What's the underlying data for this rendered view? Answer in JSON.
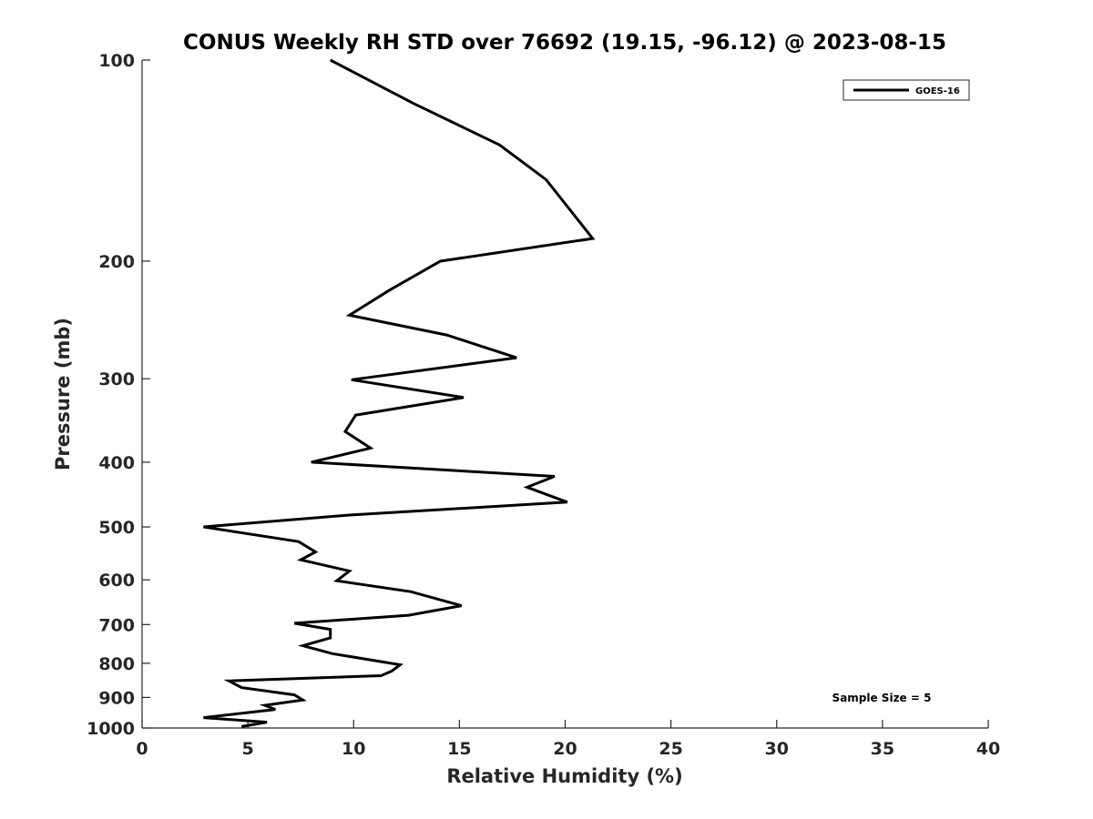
{
  "chart_data": {
    "type": "line",
    "title": "CONUS Weekly RH STD over 76692 (19.15, -96.12) @ 2023-08-15",
    "xlabel": "Relative Humidity (%)",
    "ylabel": "Pressure (mb)",
    "xlim": [
      0,
      40
    ],
    "ylim": [
      100,
      1000
    ],
    "y_scale": "log",
    "y_reversed": true,
    "x_ticks": [
      0,
      5,
      10,
      15,
      20,
      25,
      30,
      35,
      40
    ],
    "x_tick_labels": [
      "0",
      "5",
      "10",
      "15",
      "20",
      "25",
      "30",
      "35",
      "40"
    ],
    "y_ticks": [
      100,
      200,
      300,
      400,
      500,
      600,
      700,
      800,
      900,
      1000
    ],
    "y_tick_labels": [
      "100",
      "200",
      "300",
      "400",
      "500",
      "600",
      "700",
      "800",
      "900",
      "1000"
    ],
    "grid": false,
    "legend": {
      "position": "top-right",
      "entries": [
        "GOES-16"
      ]
    },
    "annotation": "Sample Size = 5",
    "series": [
      {
        "name": "GOES-16",
        "color": "#000000",
        "x": [
          8.9,
          12.8,
          16.9,
          19.1,
          21.3,
          14.1,
          11.7,
          9.8,
          14.4,
          17.7,
          9.9,
          15.2,
          10.1,
          9.6,
          10.8,
          8.0,
          19.5,
          18.2,
          20.1,
          9.8,
          2.9,
          7.4,
          8.2,
          7.5,
          9.8,
          9.2,
          12.7,
          15.1,
          12.6,
          7.2,
          8.9,
          8.9,
          7.6,
          9.0,
          12.2,
          11.8,
          11.3,
          4.1,
          4.7,
          7.2,
          7.6,
          5.8,
          6.3,
          2.9,
          5.9,
          4.7
        ],
        "y": [
          100,
          116,
          134,
          151,
          185,
          200,
          221,
          241,
          258,
          279,
          301,
          320,
          340,
          360,
          381,
          400,
          420,
          436,
          459,
          480,
          500,
          526,
          545,
          560,
          582,
          602,
          625,
          656,
          678,
          697,
          712,
          733,
          753,
          774,
          804,
          822,
          835,
          850,
          870,
          892,
          908,
          925,
          938,
          965,
          980,
          995
        ]
      }
    ]
  }
}
